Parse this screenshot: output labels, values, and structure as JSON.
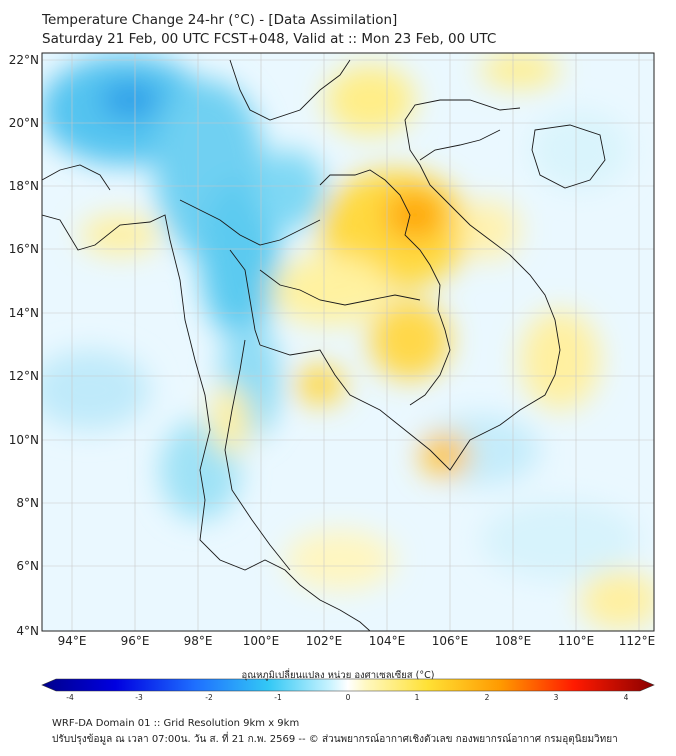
{
  "header": {
    "title": "Temperature Change 24-hr (°C) - [Data Assimilation]",
    "subtitle": "Saturday 21 Feb, 00 UTC FCST+048, Valid at :: Mon 23 Feb, 00 UTC"
  },
  "map": {
    "lat_labels": [
      "22°N",
      "20°N",
      "18°N",
      "16°N",
      "14°N",
      "12°N",
      "10°N",
      "8°N",
      "6°N",
      "4°N"
    ],
    "lon_labels": [
      "94°E",
      "96°E",
      "98°E",
      "100°E",
      "102°E",
      "104°E",
      "106°E",
      "108°E",
      "110°E",
      "112°E"
    ],
    "lat_range": [
      4,
      22.2
    ],
    "lon_range": [
      93.1,
      112.5
    ]
  },
  "colorbar": {
    "label": "อุณหภูมิเปลี่ยนแปลง หน่วย องศาเซลเซียส (°C)",
    "ticks": [
      "-4",
      "-3",
      "-2",
      "-1",
      "0",
      "1",
      "2",
      "3",
      "4"
    ],
    "range": [
      -4,
      4
    ]
  },
  "footer": {
    "line1": "WRF-DA Domain 01 :: Grid Resolution 9km x 9km",
    "line2": "ปรับปรุงข้อมูล ณ เวลา 07:00น. วัน ส. ที่ 21 ก.พ. 2569 -- © ส่วนพยากรณ์อากาศเชิงตัวเลข กองพยากรณ์อากาศ กรมอุตุนิยมวิทยา"
  },
  "colors": {
    "cold_strong": "#00008b",
    "cold": "#1e90ff",
    "cool": "#4fc3f7",
    "neutral": "#ffffff",
    "warm": "#ffe135",
    "hot": "#ff8c00",
    "very_hot": "#8b0000"
  }
}
